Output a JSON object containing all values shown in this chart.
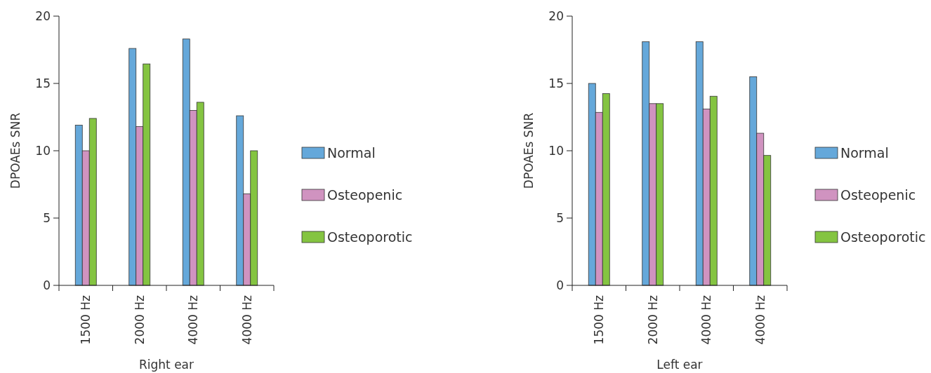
{
  "chart_data": [
    {
      "type": "bar",
      "xlabel": "Right ear",
      "ylabel": "DPOAEs SNR",
      "categories": [
        "1500 Hz",
        "2000 Hz",
        "4000 Hz",
        "4000 Hz"
      ],
      "ylim": [
        0,
        20
      ],
      "yticks": [
        0,
        5,
        10,
        15,
        20
      ],
      "legend": "right",
      "series": [
        {
          "name": "Normal",
          "color": "#65a8da",
          "values": [
            11.9,
            17.6,
            18.3,
            12.6
          ]
        },
        {
          "name": "Osteopenic",
          "color": "#d093c0",
          "values": [
            10.0,
            11.8,
            13.0,
            6.8
          ]
        },
        {
          "name": "Osteoporotic",
          "color": "#84c441",
          "values": [
            12.4,
            16.45,
            13.6,
            10.0
          ]
        }
      ]
    },
    {
      "type": "bar",
      "xlabel": "Left ear",
      "ylabel": "DPOAEs SNR",
      "categories": [
        "1500 Hz",
        "2000 Hz",
        "4000 Hz",
        "4000 Hz"
      ],
      "ylim": [
        0,
        20
      ],
      "yticks": [
        0,
        5,
        10,
        15,
        20
      ],
      "legend": "right",
      "series": [
        {
          "name": "Normal",
          "color": "#65a8da",
          "values": [
            15.0,
            18.1,
            18.1,
            15.5
          ]
        },
        {
          "name": "Osteopenic",
          "color": "#d093c0",
          "values": [
            12.85,
            13.5,
            13.1,
            11.3
          ]
        },
        {
          "name": "Osteoporotic",
          "color": "#84c441",
          "values": [
            14.25,
            13.5,
            14.05,
            9.65
          ]
        }
      ]
    }
  ]
}
